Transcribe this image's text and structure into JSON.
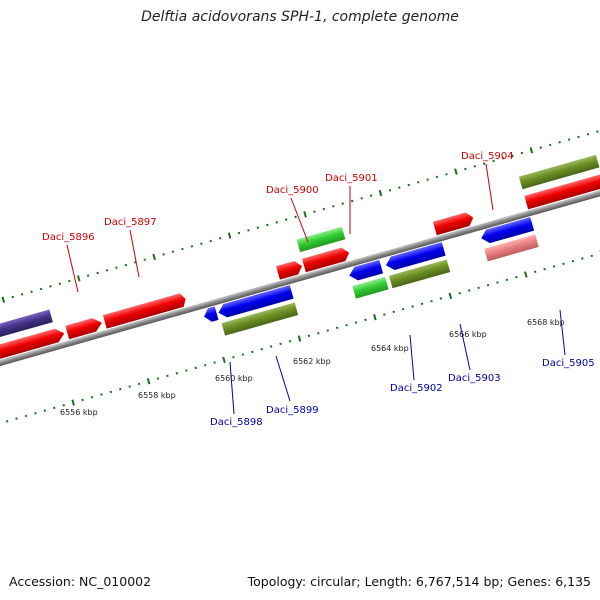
{
  "title": "Delftia acidovorans SPH-1, complete genome",
  "footer": {
    "accession": "Accession: NC_010002",
    "topology": "Topology: circular; Length: 6,767,514 bp; Genes: 6,135"
  },
  "colors": {
    "forward_gene": "#ee0000",
    "reverse_gene": "#0000ee",
    "rna_gene": "#33cc33",
    "olive_feature": "#6b8e23",
    "purple_feature": "#443388",
    "pink_feature": "#e88080",
    "backbone": "#888888",
    "tick": "#1a6e1a",
    "label_forward": "#cc0000",
    "label_reverse": "#0000aa"
  },
  "scale_labels": [
    {
      "kbp": 6556,
      "text": "6556 kbp"
    },
    {
      "kbp": 6558,
      "text": "6558 kbp"
    },
    {
      "kbp": 6560,
      "text": "6560 kbp"
    },
    {
      "kbp": 6562,
      "text": "6562 kbp"
    },
    {
      "kbp": 6564,
      "text": "6564 kbp"
    },
    {
      "kbp": 6566,
      "text": "6566 kbp"
    },
    {
      "kbp": 6568,
      "text": "6568 kbp"
    }
  ],
  "gene_labels": [
    {
      "text": "Daci_5896",
      "strand": "forward"
    },
    {
      "text": "Daci_5897",
      "strand": "forward"
    },
    {
      "text": "Daci_5900",
      "strand": "forward"
    },
    {
      "text": "Daci_5901",
      "strand": "forward"
    },
    {
      "text": "Daci_5904",
      "strand": "forward"
    },
    {
      "text": "Daci_5898",
      "strand": "reverse"
    },
    {
      "text": "Daci_5899",
      "strand": "reverse"
    },
    {
      "text": "Daci_5902",
      "strand": "reverse"
    },
    {
      "text": "Daci_5903",
      "strand": "reverse"
    },
    {
      "text": "Daci_5905",
      "strand": "reverse"
    }
  ]
}
